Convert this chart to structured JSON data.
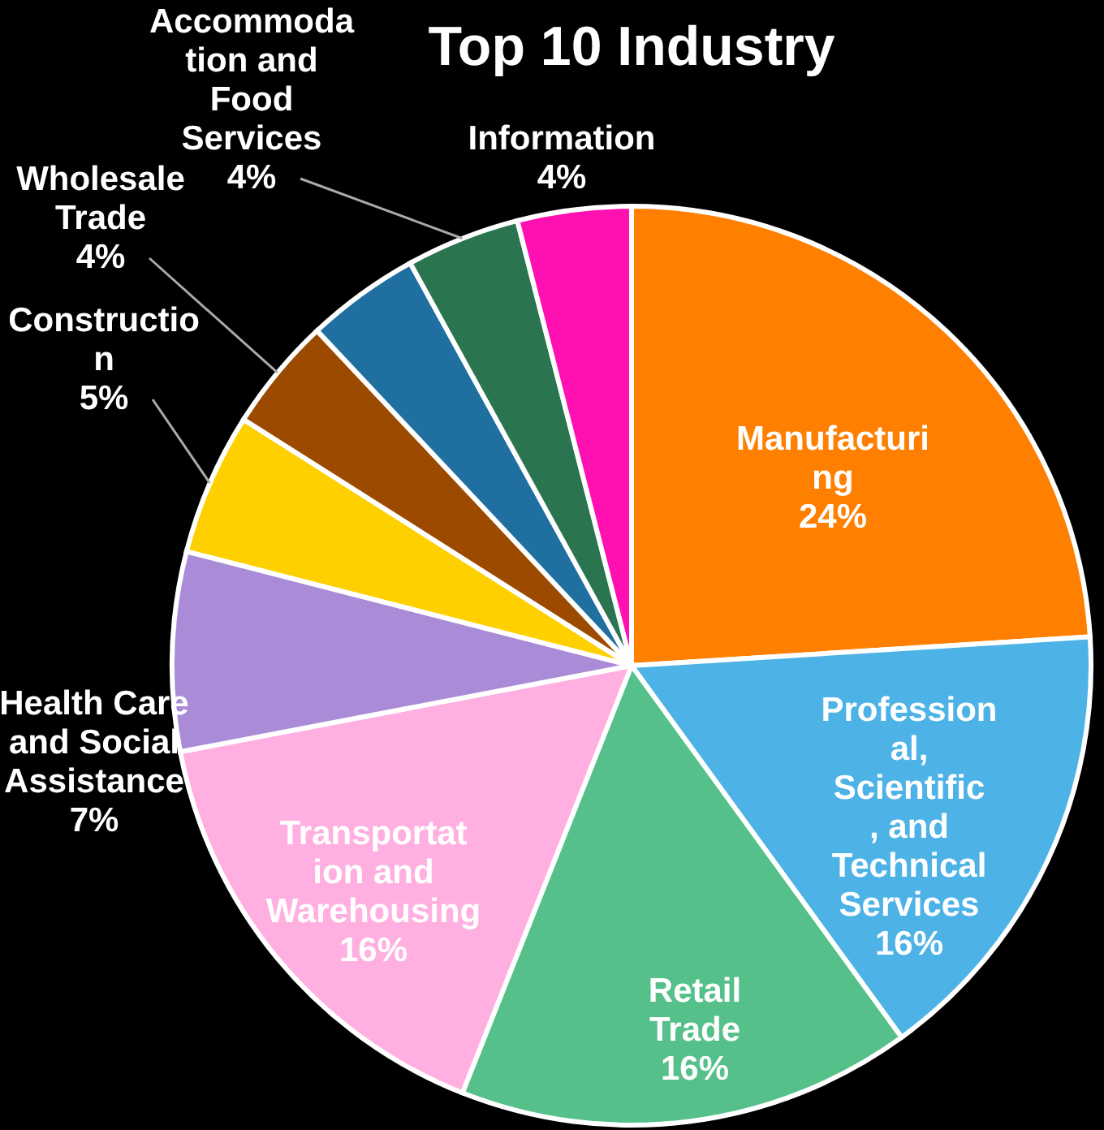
{
  "chart_data": {
    "type": "pie",
    "title": "Top 10 Industry",
    "categories": [
      "Manufacturing",
      "Professional, Scientific, and Technical Services",
      "Retail Trade",
      "Transportation and Warehousing",
      "Health Care and Social Assistance",
      "Construction",
      "Wholesale Trade",
      null,
      "Accommodation and Food Services",
      "Information"
    ],
    "values": [
      24,
      16,
      16,
      16,
      7,
      5,
      4,
      4,
      4,
      4
    ],
    "value_labels": [
      "24%",
      "16%",
      "16%",
      "16%",
      "7%",
      "5%",
      "4%",
      null,
      "4%",
      "4%"
    ],
    "colors": [
      "#ff7f00",
      "#4db3e6",
      "#55c08a",
      "#ffb0e0",
      "#a98bd8",
      "#ffd000",
      "#9c4a00",
      "#1f6fa0",
      "#2a7550",
      "#ff10b0"
    ]
  }
}
